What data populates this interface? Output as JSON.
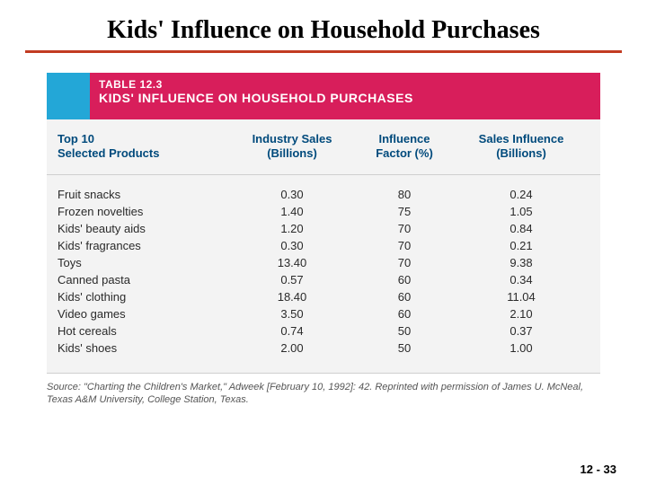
{
  "slide": {
    "title": "Kids' Influence on Household Purchases",
    "title_underline_color": "#c23b22",
    "page_number": "12 - 33"
  },
  "table": {
    "number": "TABLE 12.3",
    "title": "KIDS' INFLUENCE ON HOUSEHOLD PURCHASES",
    "header_blue": "#23a7d7",
    "header_pink": "#d81e5b",
    "header_text_color": "#ffffff",
    "body_bg": "#f3f3f3",
    "col_header_color": "#004a7c",
    "columns": {
      "c1a": "Top 10",
      "c1b": "Selected Products",
      "c2a": "Industry Sales",
      "c2b": "(Billions)",
      "c3a": "Influence",
      "c3b": "Factor (%)",
      "c4a": "Sales Influence",
      "c4b": "(Billions)"
    },
    "rows": [
      {
        "product": "Fruit snacks",
        "sales": "0.30",
        "factor": "80",
        "influence": "0.24"
      },
      {
        "product": "Frozen novelties",
        "sales": "1.40",
        "factor": "75",
        "influence": "1.05"
      },
      {
        "product": "Kids' beauty aids",
        "sales": "1.20",
        "factor": "70",
        "influence": "0.84"
      },
      {
        "product": "Kids' fragrances",
        "sales": "0.30",
        "factor": "70",
        "influence": "0.21"
      },
      {
        "product": "Toys",
        "sales": "13.40",
        "factor": "70",
        "influence": "9.38"
      },
      {
        "product": "Canned pasta",
        "sales": "0.57",
        "factor": "60",
        "influence": "0.34"
      },
      {
        "product": "Kids' clothing",
        "sales": "18.40",
        "factor": "60",
        "influence": "11.04"
      },
      {
        "product": "Video games",
        "sales": "3.50",
        "factor": "60",
        "influence": "2.10"
      },
      {
        "product": "Hot cereals",
        "sales": "0.74",
        "factor": "50",
        "influence": "0.37"
      },
      {
        "product": "Kids' shoes",
        "sales": "2.00",
        "factor": "50",
        "influence": "1.00"
      }
    ]
  },
  "source": "Source: \"Charting the Children's Market,\" Adweek [February 10, 1992]: 42. Reprinted with permission of James U. McNeal, Texas A&M University, College Station, Texas."
}
